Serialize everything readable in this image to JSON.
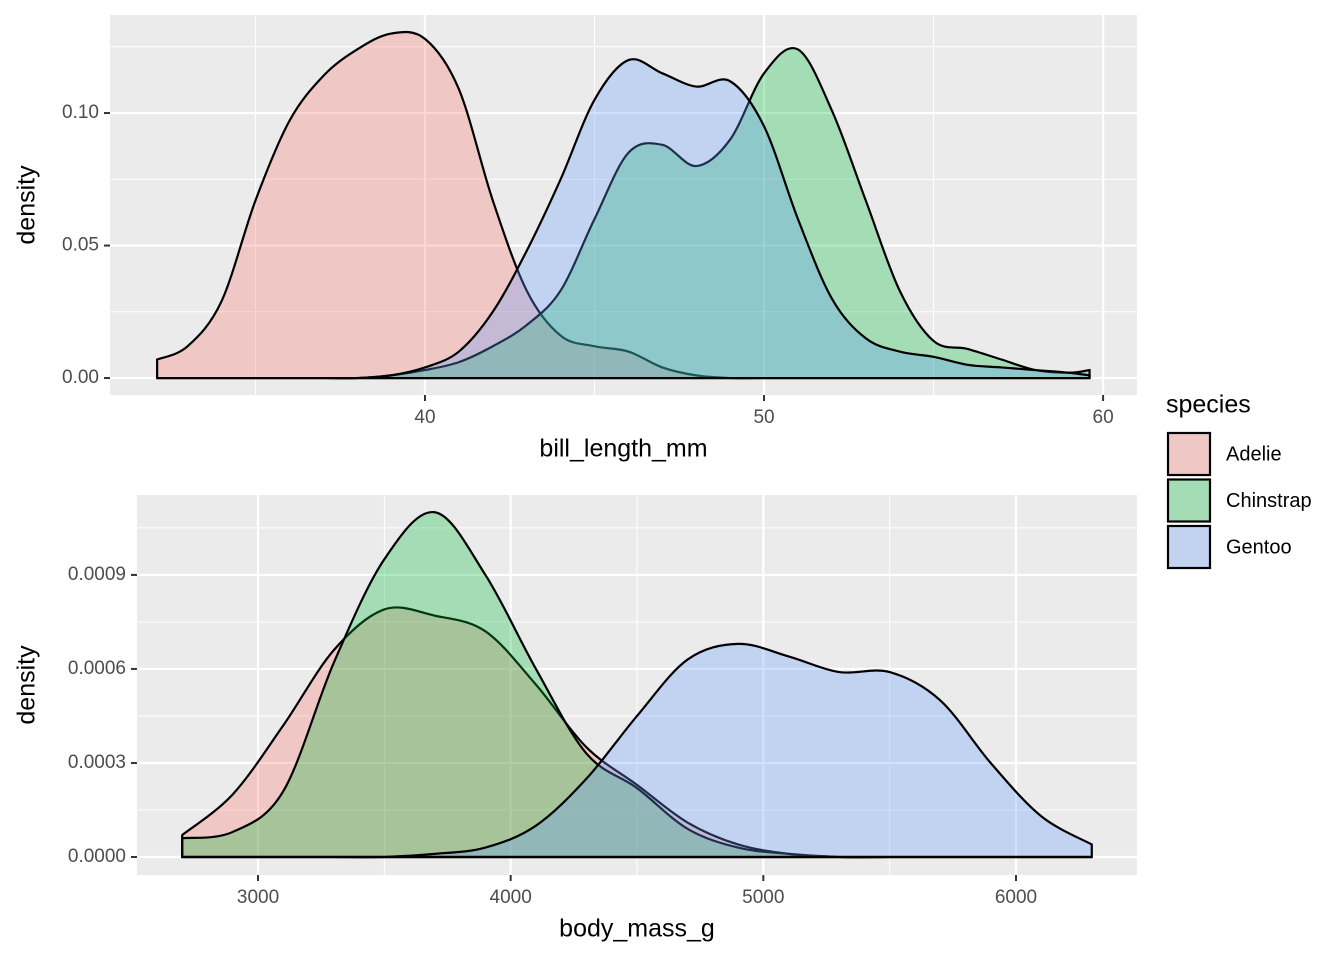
{
  "chart_data": [
    {
      "type": "density",
      "x_label": "bill_length_mm",
      "y_label": "density",
      "xlim": [
        30.71,
        61.0
      ],
      "ylim": [
        -0.0064,
        0.137
      ],
      "xticks": [
        40,
        50,
        60
      ],
      "minor_xticks": [
        35,
        45,
        55
      ],
      "yticks": [
        {
          "value": 0,
          "label": "0.00"
        },
        {
          "value": 0.05,
          "label": "0.05"
        },
        {
          "value": 0.1,
          "label": "0.10"
        }
      ],
      "minor_yticks": [
        0.025,
        0.075,
        0.125
      ],
      "grid": true,
      "fill_opacity": 0.3,
      "x": [
        32.1,
        33,
        34,
        35,
        36,
        37,
        38,
        39,
        40,
        41,
        42,
        43,
        44,
        45,
        46,
        47,
        48,
        49,
        50,
        51,
        52,
        53,
        54,
        55,
        56,
        57,
        58,
        59,
        59.6
      ],
      "series": [
        {
          "name": "Adelie",
          "color": "#F8766D",
          "values": [
            0.007,
            0.012,
            0.029,
            0.067,
            0.097,
            0.114,
            0.124,
            0.13,
            0.128,
            0.109,
            0.067,
            0.033,
            0.016,
            0.012,
            0.01,
            0.004,
            0.001,
            0,
            0,
            0,
            0,
            0,
            0,
            0,
            0,
            0,
            0,
            0,
            0
          ]
        },
        {
          "name": "Chinstrap",
          "color": "#00BA38",
          "values": [
            0,
            0,
            0,
            0,
            0,
            0,
            0,
            0.001,
            0.003,
            0.006,
            0.012,
            0.02,
            0.033,
            0.06,
            0.085,
            0.088,
            0.08,
            0.09,
            0.115,
            0.124,
            0.101,
            0.067,
            0.033,
            0.014,
            0.011,
            0.007,
            0.003,
            0.002,
            0.003
          ]
        },
        {
          "name": "Gentoo",
          "color": "#619CFF",
          "values": [
            0,
            0,
            0,
            0,
            0,
            0,
            0,
            0.001,
            0.004,
            0.01,
            0.025,
            0.048,
            0.075,
            0.105,
            0.12,
            0.115,
            0.11,
            0.112,
            0.095,
            0.06,
            0.03,
            0.015,
            0.01,
            0.008,
            0.005,
            0.004,
            0.003,
            0.002,
            0.001
          ]
        }
      ]
    },
    {
      "type": "density",
      "x_label": "body_mass_g",
      "y_label": "density",
      "xlim": [
        2521,
        6479
      ],
      "ylim": [
        -5.74e-05,
        0.001155
      ],
      "xticks": [
        3000,
        4000,
        5000,
        6000
      ],
      "minor_xticks": [
        3500,
        4500,
        5500
      ],
      "yticks": [
        {
          "value": 0,
          "label": "0.0000"
        },
        {
          "value": 0.0003,
          "label": "0.0003"
        },
        {
          "value": 0.0006,
          "label": "0.0006"
        },
        {
          "value": 0.0009,
          "label": "0.0009"
        }
      ],
      "minor_yticks": [
        0.00015,
        0.00045,
        0.00075,
        0.00105
      ],
      "grid": true,
      "fill_opacity": 0.3,
      "x": [
        2700,
        2900,
        3100,
        3300,
        3500,
        3700,
        3900,
        4100,
        4300,
        4500,
        4700,
        4900,
        5100,
        5300,
        5500,
        5700,
        5900,
        6100,
        6300
      ],
      "series": [
        {
          "name": "Adelie",
          "color": "#F8766D",
          "values": [
            7e-05,
            0.0002,
            0.00042,
            0.00066,
            0.00079,
            0.00077,
            0.00072,
            0.00055,
            0.00035,
            0.00023,
            0.00011,
            4e-05,
            1e-05,
            0,
            0,
            0,
            0,
            0,
            0
          ]
        },
        {
          "name": "Chinstrap",
          "color": "#00BA38",
          "values": [
            6e-05,
            8e-05,
            0.00021,
            0.00062,
            0.00095,
            0.0011,
            0.0009,
            0.0006,
            0.00033,
            0.00022,
            9e-05,
            3e-05,
            1e-05,
            0,
            0,
            0,
            0,
            0,
            0
          ]
        },
        {
          "name": "Gentoo",
          "color": "#619CFF",
          "values": [
            0,
            0,
            0,
            0,
            0,
            1e-05,
            3e-05,
            0.0001,
            0.00025,
            0.00045,
            0.00063,
            0.00068,
            0.00064,
            0.00059,
            0.00059,
            0.0005,
            0.0003,
            0.00013,
            4e-05
          ]
        }
      ]
    }
  ],
  "legend": {
    "title": "species"
  }
}
